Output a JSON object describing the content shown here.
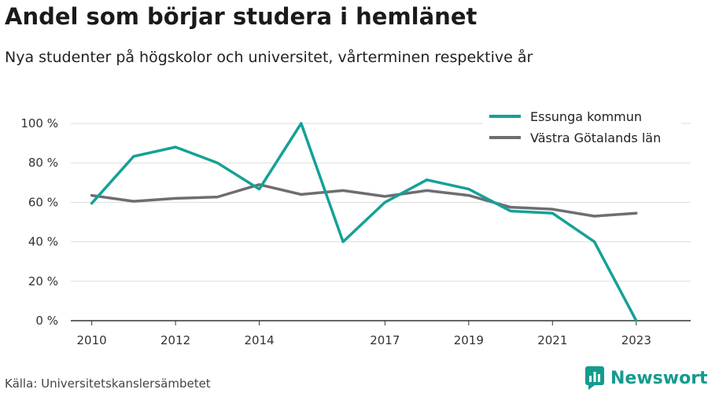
{
  "title": "Andel som börjar studera i hemlänet",
  "subtitle": "Nya studenter på högskolor och universitet, vårterminen respektive år",
  "source": "Källa: Universitetskanslersämbetet",
  "brand": "Newsworthy",
  "colors": {
    "series1": "#15a197",
    "series2": "#6e6d72",
    "grid": "#dddddd",
    "axis": "#333333",
    "brand": "#149b8f"
  },
  "chart_data": {
    "type": "line",
    "x": [
      2010,
      2011,
      2012,
      2013,
      2014,
      2015,
      2016,
      2017,
      2018,
      2019,
      2020,
      2021,
      2022,
      2023
    ],
    "series": [
      {
        "name": "Essunga kommun",
        "values": [
          59.5,
          83.3,
          88,
          80,
          66.7,
          100,
          40,
          60,
          71.4,
          66.7,
          55.6,
          54.5,
          40,
          0
        ]
      },
      {
        "name": "Västra Götalands län",
        "values": [
          63.5,
          60.5,
          62,
          62.7,
          69,
          64,
          66,
          63,
          66,
          63.5,
          57.5,
          56.5,
          53,
          54.5
        ]
      }
    ],
    "x_ticks": [
      "2010",
      "2012",
      "2014",
      "2017",
      "2019",
      "2021",
      "2023"
    ],
    "y_ticks": [
      "0 %",
      "20 %",
      "40 %",
      "60 %",
      "80 %",
      "100 %"
    ],
    "ylim": [
      0,
      100
    ],
    "xlabel": "",
    "ylabel": "",
    "grid": true,
    "legend_position": "top-right"
  }
}
